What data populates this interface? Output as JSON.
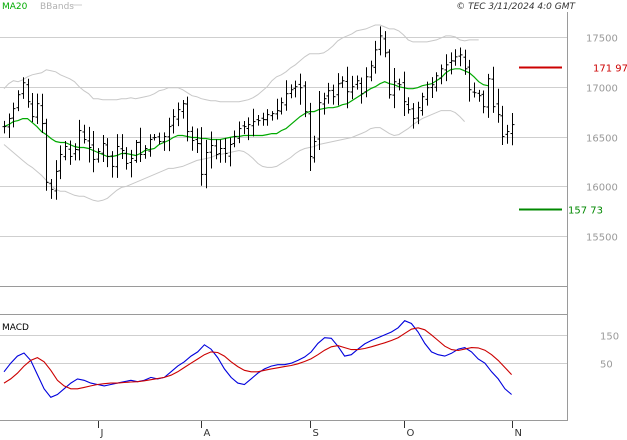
{
  "header": {
    "ma_label": "MA20",
    "bbands_label": "BBands",
    "source": "© TEC 3/11/2024 4:0 GMT"
  },
  "panels": {
    "price_title": "",
    "macd_title": "MACD"
  },
  "colors": {
    "price_bars": "#000000",
    "ma20": "#00aa00",
    "bbands": "#c8c8c8",
    "resistance": "#cc0000",
    "support": "#008800",
    "macd_line": "#0000dd",
    "signal_line": "#cc0000",
    "grid": "#cfcfcf",
    "axis_text": "#9a9a9a"
  },
  "chart_data": [
    {
      "type": "ohlc",
      "panel": "price",
      "y_ticks": [
        {
          "value": 15500,
          "label": "15500"
        },
        {
          "value": 16000,
          "label": "16000"
        },
        {
          "value": 16500,
          "label": "16500"
        },
        {
          "value": 17000,
          "label": "17000"
        },
        {
          "value": 17500,
          "label": "17500"
        }
      ],
      "ylim": [
        15000,
        17750
      ],
      "grid": true,
      "x_month_labels": [
        {
          "index": 20,
          "label": "J"
        },
        {
          "index": 42,
          "label": "A"
        },
        {
          "index": 65,
          "label": "S"
        },
        {
          "index": 85,
          "label": "O"
        },
        {
          "index": 108,
          "label": "N"
        }
      ],
      "levels": [
        {
          "name": "resistance",
          "value": 17197,
          "label": "171 97"
        },
        {
          "name": "support",
          "value": 15773,
          "label": "157 73"
        }
      ],
      "series": [
        {
          "name": "price",
          "values": [
            16600,
            16680,
            16780,
            16920,
            17040,
            16850,
            16700,
            16830,
            16630,
            16040,
            15970,
            16150,
            16320,
            16400,
            16300,
            16370,
            16560,
            16470,
            16390,
            16270,
            16350,
            16430,
            16300,
            16200,
            16400,
            16360,
            16230,
            16280,
            16440,
            16320,
            16380,
            16470,
            16490,
            16450,
            16500,
            16600,
            16700,
            16770,
            16830,
            16550,
            16460,
            16430,
            16120,
            16340,
            16410,
            16320,
            16380,
            16330,
            16420,
            16500,
            16580,
            16600,
            16620,
            16650,
            16660,
            16670,
            16720,
            16730,
            16760,
            16840,
            16930,
            16970,
            17000,
            16990,
            16750,
            16300,
            16450,
            16840,
            16880,
            16960,
            16900,
            17030,
            17060,
            16950,
            17000,
            17060,
            16930,
            17100,
            17210,
            17370,
            17510,
            17340,
            16920,
            17050,
            17020,
            16850,
            16770,
            16680,
            16790,
            16900,
            16990,
            17020,
            17110,
            17180,
            17220,
            17260,
            17300,
            17320,
            17180,
            16970,
            16940,
            16910,
            16800,
            17080,
            16800,
            16720,
            16500,
            16550,
            16620
          ]
        }
      ],
      "overlays": [
        {
          "name": "MA20",
          "values": [
            16600,
            16620,
            16650,
            16660,
            16680,
            16680,
            16640,
            16600,
            16550,
            16520,
            16480,
            16450,
            16440,
            16440,
            16420,
            16400,
            16390,
            16390,
            16380,
            16360,
            16340,
            16320,
            16300,
            16300,
            16310,
            16330,
            16330,
            16320,
            16310,
            16330,
            16360,
            16370,
            16380,
            16420,
            16440,
            16460,
            16490,
            16510,
            16510,
            16500,
            16490,
            16490,
            16480,
            16480,
            16470,
            16470,
            16470,
            16480,
            16490,
            16500,
            16500,
            16510,
            16510,
            16510,
            16510,
            16510,
            16520,
            16530,
            16530,
            16560,
            16580,
            16620,
            16660,
            16700,
            16730,
            16750,
            16750,
            16770,
            16780,
            16790,
            16790,
            16800,
            16820,
            16830,
            16860,
            16890,
            16920,
            16950,
            16980,
            17000,
            17030,
            17050,
            17030,
            17020,
            17000,
            16990,
            16980,
            16980,
            16990,
            17010,
            17020,
            17030,
            17060,
            17090,
            17140,
            17170,
            17180,
            17180,
            17160,
            17140,
            17100,
            17050,
            17020,
            17010
          ]
        },
        {
          "name": "BB upper",
          "values": [
            16980,
            17030,
            17060,
            17050,
            17070,
            17100,
            17120,
            17130,
            17140,
            17170,
            17160,
            17150,
            17120,
            17100,
            17080,
            17050,
            17000,
            16960,
            16930,
            16880,
            16880,
            16870,
            16870,
            16870,
            16870,
            16880,
            16880,
            16890,
            16880,
            16890,
            16900,
            16910,
            16930,
            16960,
            16970,
            16990,
            16990,
            16990,
            16970,
            16940,
            16910,
            16900,
            16880,
            16870,
            16860,
            16860,
            16850,
            16850,
            16850,
            16850,
            16850,
            16860,
            16870,
            16890,
            16920,
            16960,
            17000,
            17060,
            17100,
            17120,
            17150,
            17190,
            17220,
            17260,
            17300,
            17330,
            17330,
            17330,
            17340,
            17370,
            17410,
            17460,
            17490,
            17510,
            17530,
            17560,
            17570,
            17580,
            17600,
            17620,
            17620,
            17600,
            17580,
            17580,
            17560,
            17520,
            17470,
            17450,
            17450,
            17450,
            17450,
            17460,
            17470,
            17490,
            17510,
            17510,
            17500,
            17470,
            17460,
            17470,
            17470,
            17470
          ]
        },
        {
          "name": "BB lower",
          "values": [
            16420,
            16380,
            16340,
            16300,
            16260,
            16220,
            16190,
            16150,
            16110,
            16060,
            16010,
            15970,
            15950,
            15950,
            15930,
            15910,
            15900,
            15900,
            15880,
            15860,
            15850,
            15860,
            15880,
            15920,
            15960,
            15990,
            16000,
            16020,
            16040,
            16060,
            16080,
            16100,
            16120,
            16140,
            16160,
            16180,
            16180,
            16190,
            16200,
            16220,
            16240,
            16260,
            16270,
            16280,
            16290,
            16310,
            16320,
            16330,
            16340,
            16350,
            16360,
            16350,
            16320,
            16280,
            16230,
            16200,
            16190,
            16190,
            16200,
            16230,
            16260,
            16290,
            16330,
            16360,
            16380,
            16390,
            16400,
            16420,
            16430,
            16440,
            16450,
            16460,
            16470,
            16480,
            16490,
            16510,
            16530,
            16550,
            16580,
            16590,
            16590,
            16560,
            16530,
            16510,
            16520,
            16550,
            16580,
            16620,
            16650,
            16680,
            16700,
            16720,
            16740,
            16760,
            16760,
            16760,
            16740,
            16700,
            16650
          ]
        }
      ]
    },
    {
      "type": "line",
      "panel": "macd",
      "title": "MACD",
      "y_ticks": [
        {
          "value": 50,
          "label": "50"
        },
        {
          "value": 150,
          "label": "150"
        }
      ],
      "ylim": [
        -150,
        220
      ],
      "grid": true,
      "series": [
        {
          "name": "MACD",
          "values": [
            20,
            50,
            75,
            86,
            60,
            10,
            -40,
            -70,
            -60,
            -40,
            -20,
            -5,
            -10,
            -20,
            -25,
            -30,
            -25,
            -20,
            -15,
            -10,
            -15,
            -10,
            0,
            -5,
            0,
            20,
            40,
            55,
            75,
            90,
            115,
            100,
            70,
            30,
            0,
            -20,
            -25,
            -5,
            15,
            30,
            40,
            45,
            45,
            50,
            60,
            72,
            90,
            120,
            140,
            138,
            110,
            75,
            80,
            100,
            118,
            130,
            140,
            150,
            160,
            175,
            200,
            190,
            160,
            120,
            90,
            80,
            75,
            85,
            100,
            105,
            90,
            65,
            50,
            20,
            -5,
            -40,
            -60
          ]
        },
        {
          "name": "Signal",
          "values": [
            -20,
            -5,
            15,
            40,
            60,
            70,
            55,
            25,
            -10,
            -30,
            -40,
            -40,
            -35,
            -30,
            -25,
            -22,
            -20,
            -20,
            -18,
            -16,
            -15,
            -12,
            -8,
            -4,
            0,
            8,
            20,
            35,
            50,
            65,
            80,
            90,
            88,
            75,
            55,
            38,
            25,
            20,
            20,
            25,
            30,
            34,
            38,
            42,
            48,
            56,
            66,
            80,
            96,
            108,
            112,
            105,
            98,
            98,
            102,
            108,
            115,
            122,
            130,
            140,
            155,
            170,
            175,
            168,
            150,
            130,
            110,
            98,
            95,
            100,
            105,
            104,
            96,
            80,
            60,
            35,
            10
          ]
        }
      ]
    }
  ]
}
